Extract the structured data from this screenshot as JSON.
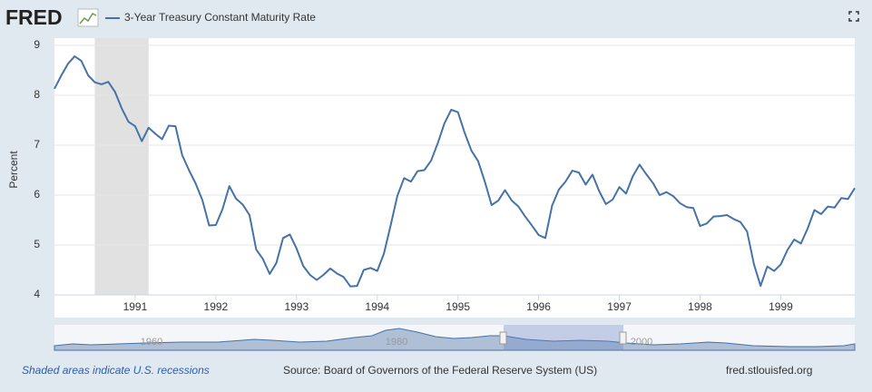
{
  "brand": "FRED",
  "navigator_labels": [
    "1960",
    "1980",
    "2000"
  ],
  "footer": {
    "recession_note": "Shaded areas indicate U.S. recessions",
    "source": "Source: Board of Governors of the Federal Reserve System (US)",
    "site": "fred.stlouisfed.org"
  },
  "chart_data": {
    "type": "line",
    "y_label": "Percent",
    "x": [
      1990,
      1990.083,
      1990.167,
      1990.25,
      1990.333,
      1990.417,
      1990.5,
      1990.583,
      1990.667,
      1990.75,
      1990.833,
      1990.917,
      1991,
      1991.083,
      1991.167,
      1991.25,
      1991.333,
      1991.417,
      1991.5,
      1991.583,
      1991.667,
      1991.75,
      1991.833,
      1991.917,
      1992,
      1992.083,
      1992.167,
      1992.25,
      1992.333,
      1992.417,
      1992.5,
      1992.583,
      1992.667,
      1992.75,
      1992.833,
      1992.917,
      1993,
      1993.083,
      1993.167,
      1993.25,
      1993.333,
      1993.417,
      1993.5,
      1993.583,
      1993.667,
      1993.75,
      1993.833,
      1993.917,
      1994,
      1994.083,
      1994.167,
      1994.25,
      1994.333,
      1994.417,
      1994.5,
      1994.583,
      1994.667,
      1994.75,
      1994.833,
      1994.917,
      1995,
      1995.083,
      1995.167,
      1995.25,
      1995.333,
      1995.417,
      1995.5,
      1995.583,
      1995.667,
      1995.75,
      1995.833,
      1995.917,
      1996,
      1996.083,
      1996.167,
      1996.25,
      1996.333,
      1996.417,
      1996.5,
      1996.583,
      1996.667,
      1996.75,
      1996.833,
      1996.917,
      1997,
      1997.083,
      1997.167,
      1997.25,
      1997.333,
      1997.417,
      1997.5,
      1997.583,
      1997.667,
      1997.75,
      1997.833,
      1997.917,
      1998,
      1998.083,
      1998.167,
      1998.25,
      1998.333,
      1998.417,
      1998.5,
      1998.583,
      1998.667,
      1998.75,
      1998.833,
      1998.917,
      1999,
      1999.083,
      1999.167,
      1999.25,
      1999.333,
      1999.417,
      1999.5,
      1999.583,
      1999.667,
      1999.75,
      1999.833,
      1999.917
    ],
    "series": [
      {
        "name": "3-Year Treasury Constant Maturity Rate",
        "color": "#4572a7",
        "values": [
          8.13,
          8.39,
          8.63,
          8.78,
          8.69,
          8.4,
          8.26,
          8.22,
          8.27,
          8.07,
          7.74,
          7.47,
          7.38,
          7.08,
          7.35,
          7.23,
          7.12,
          7.39,
          7.38,
          6.8,
          6.5,
          6.23,
          5.9,
          5.39,
          5.4,
          5.72,
          6.18,
          5.93,
          5.81,
          5.6,
          4.91,
          4.72,
          4.42,
          4.64,
          5.14,
          5.21,
          4.93,
          4.58,
          4.4,
          4.3,
          4.4,
          4.53,
          4.43,
          4.36,
          4.17,
          4.18,
          4.5,
          4.54,
          4.48,
          4.83,
          5.4,
          5.99,
          6.34,
          6.27,
          6.48,
          6.5,
          6.69,
          7.04,
          7.44,
          7.71,
          7.66,
          7.25,
          6.89,
          6.68,
          6.27,
          5.8,
          5.89,
          6.1,
          5.89,
          5.77,
          5.57,
          5.39,
          5.2,
          5.14,
          5.79,
          6.11,
          6.27,
          6.49,
          6.45,
          6.21,
          6.41,
          6.08,
          5.82,
          5.91,
          6.16,
          6.03,
          6.38,
          6.61,
          6.42,
          6.24,
          6.0,
          6.06,
          5.98,
          5.84,
          5.76,
          5.74,
          5.38,
          5.43,
          5.57,
          5.58,
          5.6,
          5.52,
          5.46,
          5.27,
          4.62,
          4.18,
          4.57,
          4.48,
          4.61,
          4.9,
          5.11,
          5.03,
          5.33,
          5.7,
          5.62,
          5.77,
          5.75,
          5.94,
          5.92,
          6.14
        ]
      }
    ],
    "recessions": [
      {
        "start": 1990.5,
        "end": 1991.167
      }
    ],
    "recession_color": "#e1e1e1",
    "xlim": [
      1990,
      1999.917
    ],
    "xticks": [
      1991,
      1992,
      1993,
      1994,
      1995,
      1996,
      1997,
      1998,
      1999
    ],
    "ylim": [
      4,
      9
    ],
    "yticks": [
      4,
      5,
      6,
      7,
      8,
      9
    ],
    "grid": true
  }
}
